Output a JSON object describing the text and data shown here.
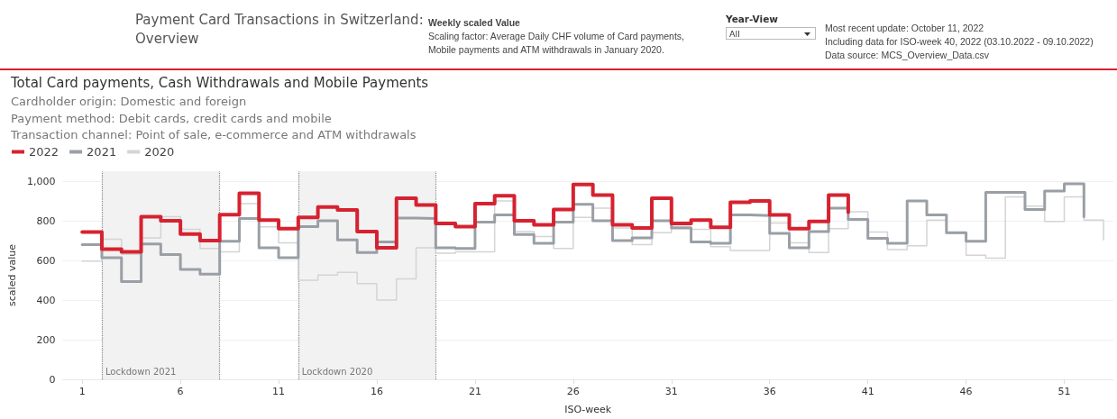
{
  "chart_data": {
    "type": "step",
    "title": "Payment Card Transactions in Switzerland: Overview",
    "subtitle": "Total Card payments, Cash Withdrawals and Mobile Payments",
    "annotations": [
      "Weekly scaled Value",
      "Scaling factor: Average Daily CHF volume of Card payments, Mobile payments and ATM withdrawals in January 2020.",
      "Year-View",
      "All",
      "Most recent update: October 11, 2022",
      "Including data for ISO-week 40, 2022 (03.10.2022 - 09.10.2022)",
      "Data source: MCS_Overview_Data.csv",
      "Cardholder origin: Domestic and foreign",
      "Payment method: Debit cards, credit cards and mobile",
      "Transaction channel: Point of sale, e-commerce and ATM withdrawals"
    ],
    "xlabel": "ISO-week",
    "ylabel": "scaled value",
    "x": [
      1,
      2,
      3,
      4,
      5,
      6,
      7,
      8,
      9,
      10,
      11,
      12,
      13,
      14,
      15,
      16,
      17,
      18,
      19,
      20,
      21,
      22,
      23,
      24,
      25,
      26,
      27,
      28,
      29,
      30,
      31,
      32,
      33,
      34,
      35,
      36,
      37,
      38,
      39,
      40,
      41,
      42,
      43,
      44,
      45,
      46,
      47,
      48,
      49,
      50,
      51,
      52,
      53
    ],
    "series": [
      {
        "name": "2022",
        "color": "#d62230",
        "values": [
          743,
          657,
          643,
          821,
          800,
          733,
          700,
          831,
          939,
          803,
          760,
          817,
          869,
          854,
          746,
          664,
          914,
          879,
          786,
          771,
          886,
          926,
          800,
          779,
          857,
          983,
          929,
          779,
          764,
          914,
          786,
          803,
          767,
          893,
          900,
          829,
          760,
          797,
          929,
          843,
          null,
          null,
          null,
          null,
          null,
          null,
          null,
          null,
          null,
          null,
          null,
          null,
          null
        ]
      },
      {
        "name": "2021",
        "color": "#9a9fa6",
        "values": [
          679,
          614,
          493,
          683,
          629,
          554,
          531,
          697,
          811,
          664,
          614,
          771,
          800,
          703,
          640,
          693,
          814,
          811,
          664,
          660,
          793,
          829,
          731,
          686,
          793,
          883,
          800,
          700,
          714,
          800,
          764,
          693,
          686,
          829,
          826,
          736,
          664,
          746,
          864,
          807,
          711,
          686,
          900,
          829,
          740,
          697,
          943,
          943,
          857,
          950,
          986,
          821,
          null
        ]
      },
      {
        "name": "2020",
        "color": "#d4d4d4",
        "values": [
          597,
          707,
          631,
          714,
          821,
          757,
          660,
          643,
          886,
          769,
          689,
          500,
          526,
          540,
          483,
          400,
          507,
          664,
          636,
          643,
          643,
          900,
          746,
          721,
          660,
          817,
          864,
          764,
          679,
          740,
          771,
          757,
          669,
          650,
          650,
          789,
          689,
          640,
          760,
          846,
          743,
          654,
          674,
          803,
          736,
          626,
          611,
          921,
          874,
          797,
          921,
          803,
          703
        ]
      }
    ],
    "xlim": [
      0,
      53.5
    ],
    "xticks": [
      1,
      6,
      11,
      16,
      21,
      26,
      31,
      36,
      41,
      46,
      51
    ],
    "ylim": [
      0,
      1050
    ],
    "yticks": [
      0,
      200,
      400,
      600,
      800,
      {
        "value": 1000,
        "label": "1,000"
      }
    ],
    "bands": [
      {
        "axis": "x",
        "from": 2,
        "to": 8,
        "label": "Lockdown 2021",
        "color": "#f2f2f2"
      },
      {
        "axis": "x",
        "from": 12,
        "to": 19,
        "label": "Lockdown 2020",
        "color": "#f2f2f2"
      }
    ],
    "grid": "y",
    "legend": "top left"
  }
}
